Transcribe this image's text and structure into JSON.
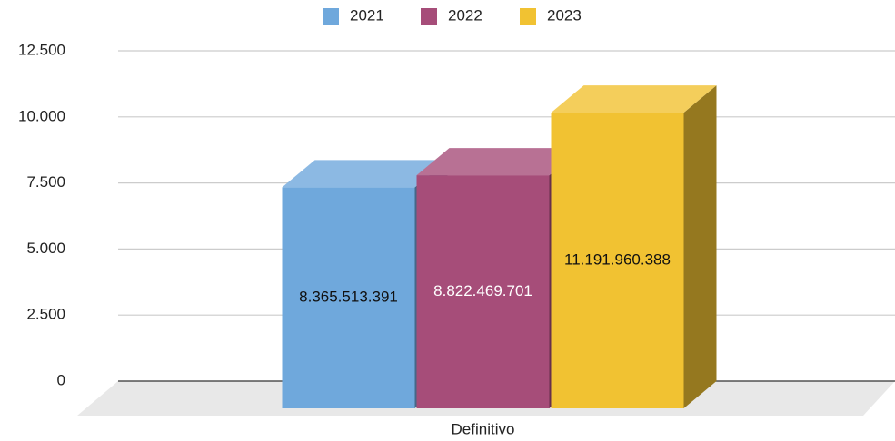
{
  "chart_data": {
    "type": "bar3d",
    "categories": [
      "Definitivo"
    ],
    "series": [
      {
        "name": "2021",
        "color": "#6fa8dc",
        "values": [
          8365.513391
        ],
        "value_labels": [
          "8.365.513.391"
        ]
      },
      {
        "name": "2022",
        "color": "#a64d79",
        "values": [
          8822.469701
        ],
        "value_labels": [
          "8.822.469.701"
        ]
      },
      {
        "name": "2023",
        "color": "#f1c232",
        "values": [
          11191.960388
        ],
        "value_labels": [
          "11.191.960.388"
        ]
      }
    ],
    "ylim": [
      0,
      12500
    ],
    "yticks": [
      0,
      {
        "value": 2500,
        "label": "2.500"
      },
      {
        "value": 5000,
        "label": "5.000"
      },
      {
        "value": 7500,
        "label": "7.500"
      },
      {
        "value": 10000,
        "label": "10.000"
      },
      {
        "value": 12500,
        "label": "12.500"
      }
    ],
    "grid": true,
    "legend": "top"
  }
}
